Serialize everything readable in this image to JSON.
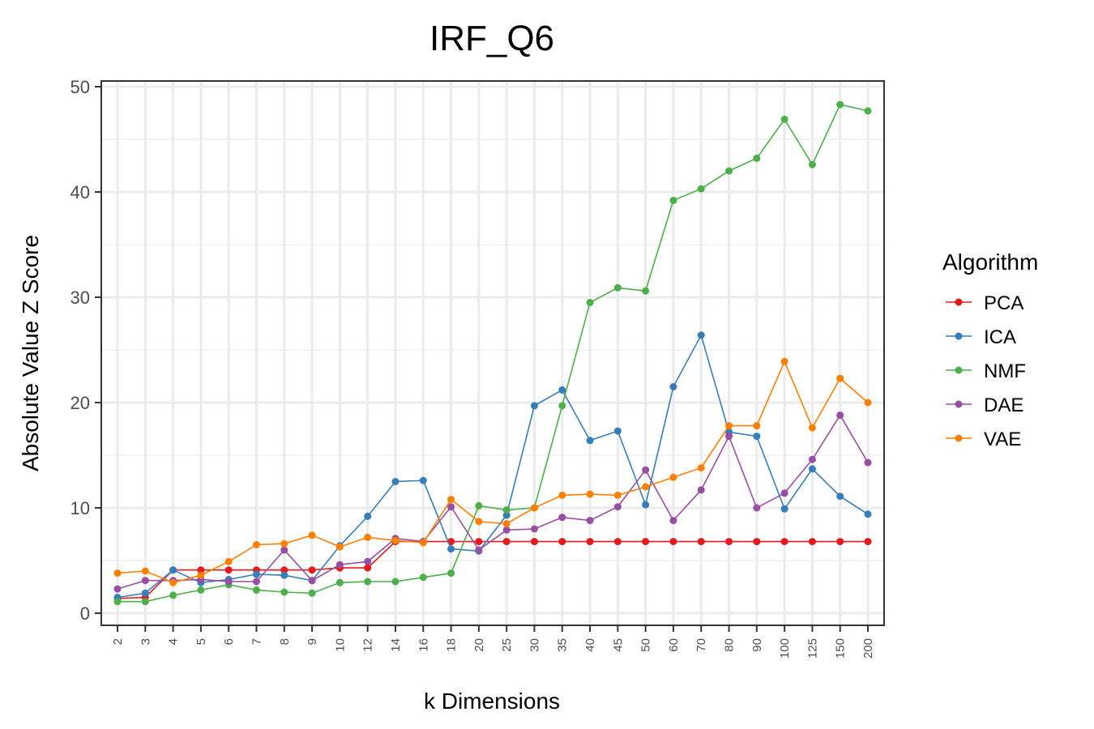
{
  "chart_data": {
    "type": "line",
    "title": "IRF_Q6",
    "xlabel": "k Dimensions",
    "ylabel": "Absolute Value Z Score",
    "ylim": [
      0,
      50
    ],
    "yticks": [
      0,
      10,
      20,
      30,
      40,
      50
    ],
    "grid": true,
    "legend": {
      "title": "Algorithm",
      "position": "right"
    },
    "categories": [
      "2",
      "3",
      "4",
      "5",
      "6",
      "7",
      "8",
      "9",
      "10",
      "12",
      "14",
      "16",
      "18",
      "20",
      "25",
      "30",
      "35",
      "40",
      "45",
      "50",
      "60",
      "70",
      "80",
      "90",
      "100",
      "125",
      "150",
      "200"
    ],
    "series": [
      {
        "name": "PCA",
        "color": "#e41a1c",
        "values": [
          1.4,
          1.5,
          4.1,
          4.1,
          4.1,
          4.1,
          4.1,
          4.1,
          4.3,
          4.3,
          6.8,
          6.8,
          6.8,
          6.8,
          6.8,
          6.8,
          6.8,
          6.8,
          6.8,
          6.8,
          6.8,
          6.8,
          6.8,
          6.8,
          6.8,
          6.8,
          6.8,
          6.8
        ]
      },
      {
        "name": "ICA",
        "color": "#377eb8",
        "values": [
          1.5,
          1.9,
          4.1,
          2.9,
          3.2,
          3.7,
          3.6,
          3.1,
          6.4,
          9.2,
          12.5,
          12.6,
          6.1,
          5.9,
          9.3,
          19.7,
          21.2,
          16.4,
          17.3,
          10.3,
          21.5,
          26.4,
          17.2,
          16.8,
          9.9,
          13.7,
          11.1,
          9.4
        ]
      },
      {
        "name": "NMF",
        "color": "#4daf4a",
        "values": [
          1.1,
          1.1,
          1.7,
          2.2,
          2.7,
          2.2,
          2.0,
          1.9,
          2.9,
          3.0,
          3.0,
          3.4,
          3.8,
          10.2,
          9.8,
          10.0,
          19.7,
          29.5,
          30.9,
          30.6,
          39.2,
          40.3,
          42.0,
          43.2,
          46.9,
          42.6,
          48.3,
          47.7
        ]
      },
      {
        "name": "DAE",
        "color": "#984ea3",
        "values": [
          2.3,
          3.1,
          3.1,
          3.2,
          3.0,
          3.0,
          6.0,
          3.1,
          4.6,
          4.9,
          7.1,
          6.8,
          10.1,
          6.0,
          7.9,
          8.0,
          9.1,
          8.8,
          10.1,
          13.6,
          8.8,
          11.7,
          16.8,
          10.0,
          11.4,
          14.6,
          18.8,
          14.3
        ]
      },
      {
        "name": "VAE",
        "color": "#ff7f00",
        "values": [
          3.8,
          4.0,
          2.9,
          3.6,
          4.9,
          6.5,
          6.6,
          7.4,
          6.3,
          7.2,
          6.9,
          6.7,
          10.8,
          8.7,
          8.5,
          10.0,
          11.2,
          11.3,
          11.2,
          12.0,
          12.9,
          13.8,
          17.8,
          17.8,
          23.9,
          17.6,
          22.3,
          20.0
        ]
      }
    ]
  }
}
